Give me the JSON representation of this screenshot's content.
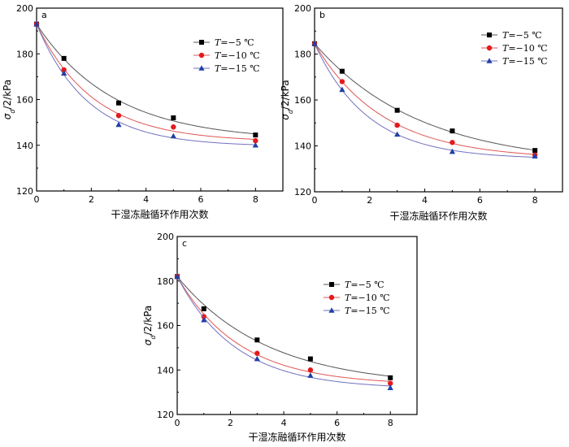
{
  "chart_data": [
    {
      "type": "scatter",
      "panel_label": "a",
      "xlabel": "干湿冻融循环作用次数",
      "ylabel": "σd/2/kPa",
      "xlim": [
        0,
        9
      ],
      "ylim": [
        120,
        200
      ],
      "x_ticks": [
        "0",
        "2",
        "4",
        "6",
        "8"
      ],
      "y_ticks": [
        "120",
        "140",
        "160",
        "180",
        "200"
      ],
      "legend_position": "top-right",
      "series": [
        {
          "name": "T=−5 ℃",
          "marker": "square",
          "color": "#000000",
          "line_color": "#555555",
          "x": [
            0,
            1,
            3,
            5,
            8
          ],
          "values": [
            193,
            178,
            158.5,
            152,
            144.5
          ]
        },
        {
          "name": "T=−10 ℃",
          "marker": "circle",
          "color": "#e31a1c",
          "line_color": "#e05555",
          "x": [
            0,
            1,
            3,
            5,
            8
          ],
          "values": [
            193,
            173,
            153,
            148,
            142
          ]
        },
        {
          "name": "T=−15 ℃",
          "marker": "triangle",
          "color": "#1f3fa6",
          "line_color": "#7070c0",
          "x": [
            0,
            1,
            3,
            5,
            8
          ],
          "values": [
            193,
            171.5,
            149,
            144,
            140
          ]
        }
      ]
    },
    {
      "type": "scatter",
      "panel_label": "b",
      "xlabel": "干湿冻融循环作用次数",
      "ylabel": "σd/2/kPa",
      "xlim": [
        0,
        9
      ],
      "ylim": [
        120,
        200
      ],
      "x_ticks": [
        "0",
        "2",
        "4",
        "6",
        "8"
      ],
      "y_ticks": [
        "120",
        "140",
        "160",
        "180",
        "200"
      ],
      "legend_position": "top-right",
      "series": [
        {
          "name": "T=−5 ℃",
          "marker": "square",
          "color": "#000000",
          "line_color": "#555555",
          "x": [
            0,
            1,
            3,
            5,
            8
          ],
          "values": [
            184.5,
            172.5,
            155.5,
            146.5,
            138
          ]
        },
        {
          "name": "T=−10 ℃",
          "marker": "circle",
          "color": "#e31a1c",
          "line_color": "#e05555",
          "x": [
            0,
            1,
            3,
            5,
            8
          ],
          "values": [
            184.5,
            168,
            149,
            141.5,
            136
          ]
        },
        {
          "name": "T=−15 ℃",
          "marker": "triangle",
          "color": "#1f3fa6",
          "line_color": "#7070c0",
          "x": [
            0,
            1,
            3,
            5,
            8
          ],
          "values": [
            184.5,
            164.5,
            145,
            137.5,
            135.5
          ]
        }
      ]
    },
    {
      "type": "scatter",
      "panel_label": "c",
      "xlabel": "干湿冻融循环作用次数",
      "ylabel": "σd/2/kPa",
      "xlim": [
        0,
        9
      ],
      "ylim": [
        120,
        200
      ],
      "x_ticks": [
        "0",
        "2",
        "4",
        "6",
        "8"
      ],
      "y_ticks": [
        "120",
        "140",
        "160",
        "180",
        "200"
      ],
      "legend_position": "top-right",
      "series": [
        {
          "name": "T=−5 ℃",
          "marker": "square",
          "color": "#000000",
          "line_color": "#555555",
          "x": [
            0,
            1,
            3,
            5,
            8
          ],
          "values": [
            182,
            167.5,
            153.5,
            145,
            136.5
          ]
        },
        {
          "name": "T=−10 ℃",
          "marker": "circle",
          "color": "#e31a1c",
          "line_color": "#e05555",
          "x": [
            0,
            1,
            3,
            5,
            8
          ],
          "values": [
            182,
            164,
            147.5,
            140,
            134
          ]
        },
        {
          "name": "T=−15 ℃",
          "marker": "triangle",
          "color": "#1f3fa6",
          "line_color": "#7070c0",
          "x": [
            0,
            1,
            3,
            5,
            8
          ],
          "values": [
            182,
            162.5,
            145,
            137.5,
            132
          ]
        }
      ]
    }
  ]
}
